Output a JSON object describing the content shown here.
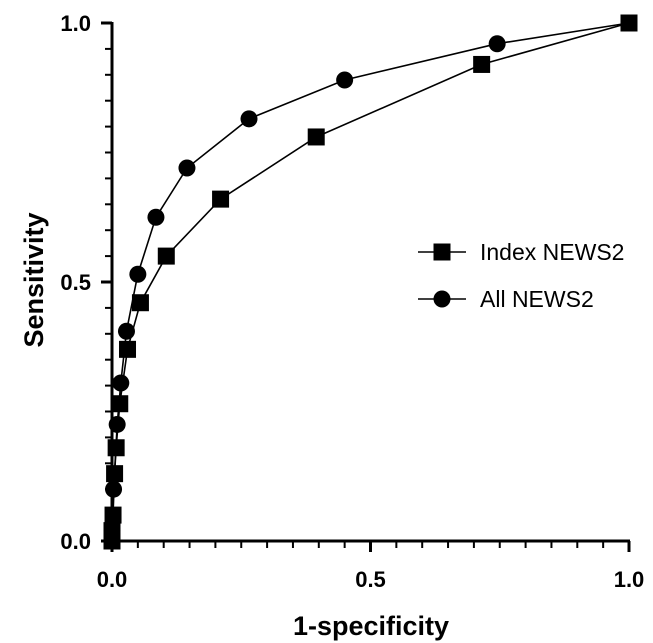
{
  "chart_data": {
    "type": "line",
    "title": "",
    "xlabel": "1-specificity",
    "ylabel": "Sensitivity",
    "xlim": [
      0,
      1
    ],
    "ylim": [
      0,
      1
    ],
    "x_ticks": [
      "0.0",
      "0.5",
      "1.0"
    ],
    "y_ticks": [
      "0.0",
      "0.5",
      "1.0"
    ],
    "grid": false,
    "legend_position": "right",
    "series": [
      {
        "name": "Index NEWS2",
        "marker": "square",
        "color": "#000000",
        "points": [
          [
            0.0,
            0.0
          ],
          [
            0.0,
            0.01
          ],
          [
            0.0,
            0.02
          ],
          [
            0.002,
            0.05
          ],
          [
            0.005,
            0.13
          ],
          [
            0.008,
            0.18
          ],
          [
            0.015,
            0.265
          ],
          [
            0.03,
            0.37
          ],
          [
            0.055,
            0.46
          ],
          [
            0.105,
            0.55
          ],
          [
            0.21,
            0.66
          ],
          [
            0.395,
            0.78
          ],
          [
            0.715,
            0.92
          ],
          [
            1.0,
            1.0
          ]
        ]
      },
      {
        "name": "All NEWS2",
        "marker": "circle",
        "color": "#000000",
        "points": [
          [
            0.0,
            0.0
          ],
          [
            0.0,
            0.02
          ],
          [
            0.003,
            0.1
          ],
          [
            0.01,
            0.225
          ],
          [
            0.017,
            0.305
          ],
          [
            0.028,
            0.405
          ],
          [
            0.05,
            0.515
          ],
          [
            0.085,
            0.625
          ],
          [
            0.145,
            0.72
          ],
          [
            0.265,
            0.815
          ],
          [
            0.45,
            0.89
          ],
          [
            0.745,
            0.96
          ],
          [
            1.0,
            1.0
          ]
        ]
      }
    ]
  }
}
